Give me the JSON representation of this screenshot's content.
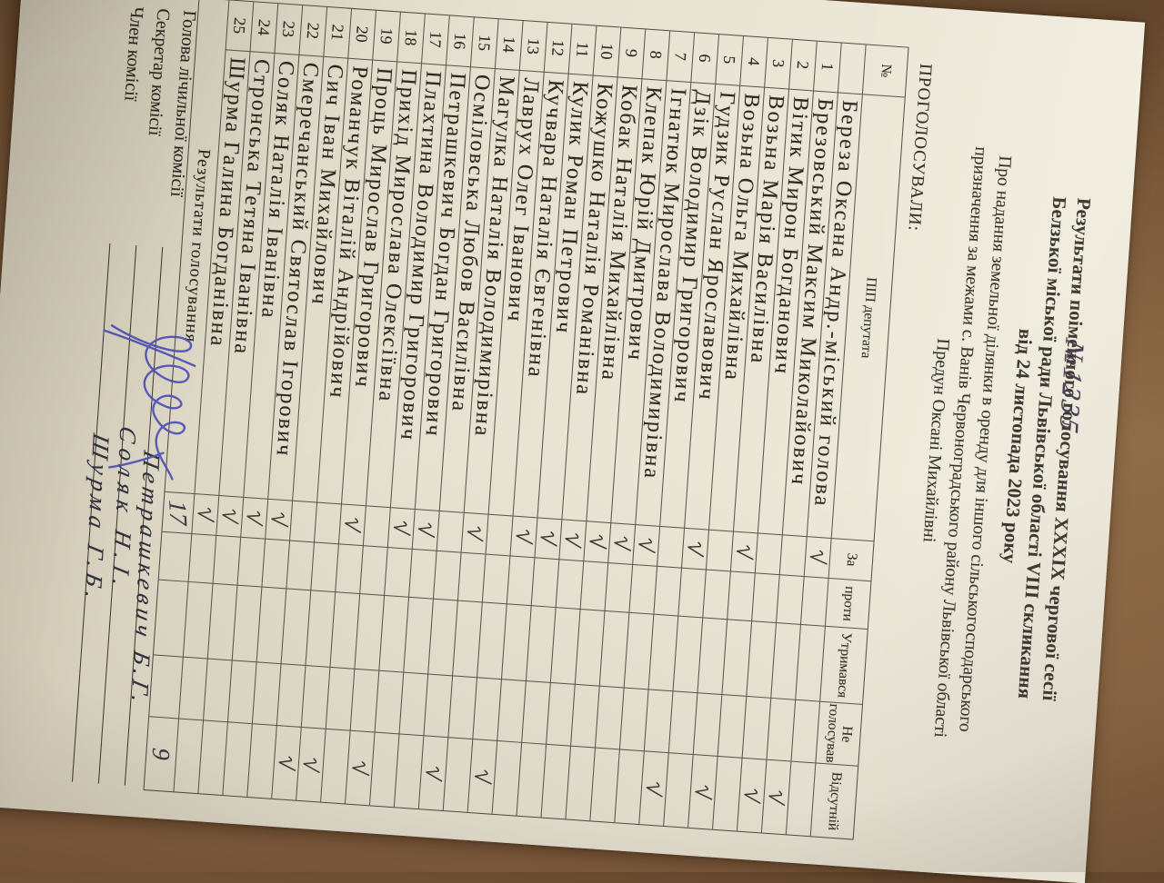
{
  "photo": {
    "corner_note": "№1235"
  },
  "document": {
    "title_lines": [
      "Результати поіменного голосування XXXIX чергової сесії",
      "Белзької міської ради Львівської області VIII скликання",
      "від 24 листопада 2023 року"
    ],
    "subject_lines": [
      "Про надання земельної ділянки в оренду для іншого сільськогосподарського",
      "призначення за межами с. Ванів Червоноградського району Львівської області",
      "Предун Оксані Михайлівні"
    ],
    "voted_label": "ПРОГОЛОСУВАЛИ:",
    "table": {
      "headers": {
        "num": "№",
        "name": "ПІП депутата",
        "for": "За",
        "against": "проти",
        "abstained": "Утримався",
        "not_voted": "Не голосував",
        "absent": "Відсутній"
      },
      "rows": [
        {
          "num": "",
          "name": "Береза Оксана Андр.-міський голова",
          "vote": "for"
        },
        {
          "num": "1",
          "name": "Брезовський Максим Миколайович",
          "vote": "absent"
        },
        {
          "num": "2",
          "name": "Вітик Мирон Богданович",
          "vote": "absent"
        },
        {
          "num": "3",
          "name": "Возьна Марія Василівна",
          "vote": "for"
        },
        {
          "num": "4",
          "name": "Возьна Ольга Михайлівна",
          "vote": "absent"
        },
        {
          "num": "5",
          "name": "Гудзик Руслан Ярославович",
          "vote": "for"
        },
        {
          "num": "6",
          "name": "Дзік Володимир Григорович",
          "vote": "absent"
        },
        {
          "num": "7",
          "name": "Ігнатюк Мирослава Володимирівна",
          "vote": "for"
        },
        {
          "num": "8",
          "name": "Клепак Юрій Дмитрович",
          "vote": "for"
        },
        {
          "num": "9",
          "name": "Кобак Наталія Михайлівна",
          "vote": "for"
        },
        {
          "num": "10",
          "name": "Кожушко Наталія Романівна",
          "vote": "for"
        },
        {
          "num": "11",
          "name": "Кулик Роман Петрович",
          "vote": "for"
        },
        {
          "num": "12",
          "name": "Кучвара Наталія Євгенівна",
          "vote": "for"
        },
        {
          "num": "13",
          "name": "Лаврух Олег Іванович",
          "vote": "absent"
        },
        {
          "num": "14",
          "name": "Магулка Наталія Володимирівна",
          "vote": "for"
        },
        {
          "num": "15",
          "name": "Осміловська Любов Василівна",
          "vote": "absent"
        },
        {
          "num": "16",
          "name": "Петрашкевич Богдан Григорович",
          "vote": "for"
        },
        {
          "num": "17",
          "name": "Плахтина Володимир Григорович",
          "vote": "for"
        },
        {
          "num": "18",
          "name": "Прихід Мирослава Олексіївна",
          "vote": "absent"
        },
        {
          "num": "19",
          "name": "Проць Мирослав Григорович",
          "vote": "for"
        },
        {
          "num": "20",
          "name": "Романчук Віталій Андрійович",
          "vote": "absent"
        },
        {
          "num": "21",
          "name": "Сич Іван Михайлович",
          "vote": "absent"
        },
        {
          "num": "22",
          "name": "Смеречанський Святослав Ігорович",
          "vote": "for"
        },
        {
          "num": "23",
          "name": "Соляк Наталія Іванівна",
          "vote": "for"
        },
        {
          "num": "24",
          "name": "Стронська Тетяна Іванівна",
          "vote": "for"
        },
        {
          "num": "25",
          "name": "Шурма Галина Богданівна",
          "vote": "for"
        }
      ],
      "results_label": "Результати голосування",
      "results": {
        "for": "17",
        "absent": "9"
      }
    },
    "signatures": [
      {
        "role": "Голова лічильної комісії",
        "name": "Петрашкевич Б.Г."
      },
      {
        "role": "Секретар комісії",
        "name": "Соляк Н.І."
      },
      {
        "role": "Член комісії",
        "name": "Шурма Г.Б."
      }
    ]
  }
}
